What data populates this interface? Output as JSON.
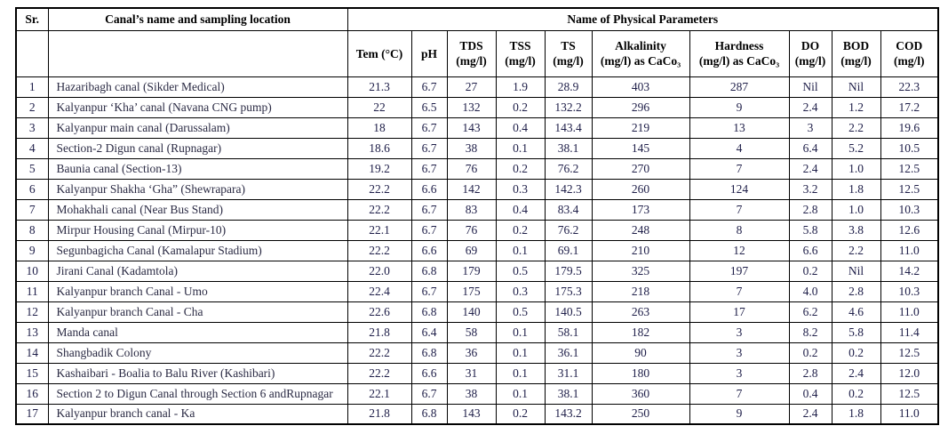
{
  "table": {
    "sr_label": "Sr.",
    "name_label": "Canal’s name and sampling location",
    "params_group_label": "Name of Physical Parameters",
    "params": [
      {
        "label": "Tem (°C)",
        "unit": ""
      },
      {
        "label": "pH",
        "unit": ""
      },
      {
        "label": "TDS",
        "unit": "(mg/l)"
      },
      {
        "label": "TSS",
        "unit": "(mg/l)"
      },
      {
        "label": "TS",
        "unit": "(mg/l)"
      },
      {
        "label": "Alkalinity",
        "unit": "(mg/l) as CaCo₃"
      },
      {
        "label": "Hardness",
        "unit": "(mg/l) as CaCo₃"
      },
      {
        "label": "DO",
        "unit": "(mg/l)"
      },
      {
        "label": "BOD",
        "unit": "(mg/l)"
      },
      {
        "label": "COD",
        "unit": "(mg/l)"
      }
    ],
    "rows": [
      {
        "sr": "1",
        "name": "Hazaribagh canal (Sikder Medical)",
        "values": [
          "21.3",
          "6.7",
          "27",
          "1.9",
          "28.9",
          "403",
          "287",
          "Nil",
          "Nil",
          "22.3"
        ]
      },
      {
        "sr": "2",
        "name": "Kalyanpur ‘Kha’ canal (Navana CNG pump)",
        "values": [
          "22",
          "6.5",
          "132",
          "0.2",
          "132.2",
          "296",
          "9",
          "2.4",
          "1.2",
          "17.2"
        ]
      },
      {
        "sr": "3",
        "name": "Kalyanpur main canal (Darussalam)",
        "values": [
          "18",
          "6.7",
          "143",
          "0.4",
          "143.4",
          "219",
          "13",
          "3",
          "2.2",
          "19.6"
        ]
      },
      {
        "sr": "4",
        "name": "Section-2 Digun canal (Rupnagar)",
        "values": [
          "18.6",
          "6.7",
          "38",
          "0.1",
          "38.1",
          "145",
          "4",
          "6.4",
          "5.2",
          "10.5"
        ]
      },
      {
        "sr": "5",
        "name": "Baunia canal (Section-13)",
        "values": [
          "19.2",
          "6.7",
          "76",
          "0.2",
          "76.2",
          "270",
          "7",
          "2.4",
          "1.0",
          "12.5"
        ]
      },
      {
        "sr": "6",
        "name": "Kalyanpur Shakha ‘Gha” (Shewrapara)",
        "values": [
          "22.2",
          "6.6",
          "142",
          "0.3",
          "142.3",
          "260",
          "124",
          "3.2",
          "1.8",
          "12.5"
        ]
      },
      {
        "sr": "7",
        "name": "Mohakhali canal (Near Bus Stand)",
        "values": [
          "22.2",
          "6.7",
          "83",
          "0.4",
          "83.4",
          "173",
          "7",
          "2.8",
          "1.0",
          "10.3"
        ]
      },
      {
        "sr": "8",
        "name": "Mirpur Housing Canal (Mirpur-10)",
        "values": [
          "22.1",
          "6.7",
          "76",
          "0.2",
          "76.2",
          "248",
          "8",
          "5.8",
          "3.8",
          "12.6"
        ]
      },
      {
        "sr": "9",
        "name": "Segunbagicha Canal (Kamalapur Stadium)",
        "values": [
          "22.2",
          "6.6",
          "69",
          "0.1",
          "69.1",
          "210",
          "12",
          "6.6",
          "2.2",
          "11.0"
        ]
      },
      {
        "sr": "10",
        "name": "Jirani Canal (Kadamtola)",
        "values": [
          "22.0",
          "6.8",
          "179",
          "0.5",
          "179.5",
          "325",
          "197",
          "0.2",
          "Nil",
          "14.2"
        ]
      },
      {
        "sr": "11",
        "name": "Kalyanpur branch Canal - Umo",
        "values": [
          "22.4",
          "6.7",
          "175",
          "0.3",
          "175.3",
          "218",
          "7",
          "4.0",
          "2.8",
          "10.3"
        ]
      },
      {
        "sr": "12",
        "name": "Kalyanpur branch Canal - Cha",
        "values": [
          "22.6",
          "6.8",
          "140",
          "0.5",
          "140.5",
          "263",
          "17",
          "6.2",
          "4.6",
          "11.0"
        ]
      },
      {
        "sr": "13",
        "name": "Manda canal",
        "values": [
          "21.8",
          "6.4",
          "58",
          "0.1",
          "58.1",
          "182",
          "3",
          "8.2",
          "5.8",
          "11.4"
        ]
      },
      {
        "sr": "14",
        "name": "Shangbadik Colony",
        "values": [
          "22.2",
          "6.8",
          "36",
          "0.1",
          "36.1",
          "90",
          "3",
          "0.2",
          "0.2",
          "12.5"
        ]
      },
      {
        "sr": "15",
        "name": "Kashaibari - Boalia to Balu River (Kashibari)",
        "values": [
          "22.2",
          "6.6",
          "31",
          "0.1",
          "31.1",
          "180",
          "3",
          "2.8",
          "2.4",
          "12.0"
        ]
      },
      {
        "sr": "16",
        "name": "Section 2 to Digun Canal through Section 6 andRupnagar",
        "values": [
          "22.1",
          "6.7",
          "38",
          "0.1",
          "38.1",
          "360",
          "7",
          "0.4",
          "0.2",
          "12.5"
        ]
      },
      {
        "sr": "17",
        "name": "Kalyanpur branch canal - Ka",
        "values": [
          "21.8",
          "6.8",
          "143",
          "0.2",
          "143.2",
          "250",
          "9",
          "2.4",
          "1.8",
          "11.0"
        ]
      }
    ]
  }
}
